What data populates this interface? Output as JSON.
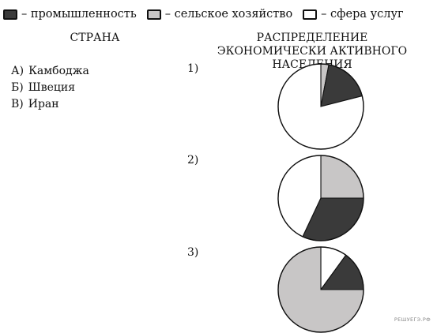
{
  "legend": [
    {
      "name": "– промышленность",
      "color": "#3a3a3a",
      "key": "industry"
    },
    {
      "name": "– сельское хозяйство",
      "color": "#c8c6c6",
      "key": "agriculture"
    },
    {
      "name": "– сфера услуг",
      "color": "#ffffff",
      "key": "services"
    }
  ],
  "headers": {
    "country": "СТРАНА",
    "distribution": "РАСПРЕДЕЛЕНИЕ ЭКОНОМИЧЕСКИ АКТИВНОГО НАСЕЛЕНИЯ"
  },
  "countries": [
    {
      "letter": "А)",
      "name": "Камбоджа"
    },
    {
      "letter": "Б)",
      "name": "Швеция"
    },
    {
      "letter": "В)",
      "name": "Иран"
    }
  ],
  "chart_data": {
    "type": "pie",
    "title": "",
    "series_names": [
      "промышленность",
      "сельское хозяйство",
      "сфера услуг"
    ],
    "charts": [
      {
        "label": "1)",
        "values": {
          "agriculture": 3,
          "industry": 18,
          "services": 79
        }
      },
      {
        "label": "2)",
        "values": {
          "agriculture": 25,
          "industry": 32,
          "services": 43
        }
      },
      {
        "label": "3)",
        "values": {
          "services": 10,
          "industry": 15,
          "agriculture": 75
        }
      }
    ]
  },
  "watermark": "РЕШУЕГЭ.РФ"
}
